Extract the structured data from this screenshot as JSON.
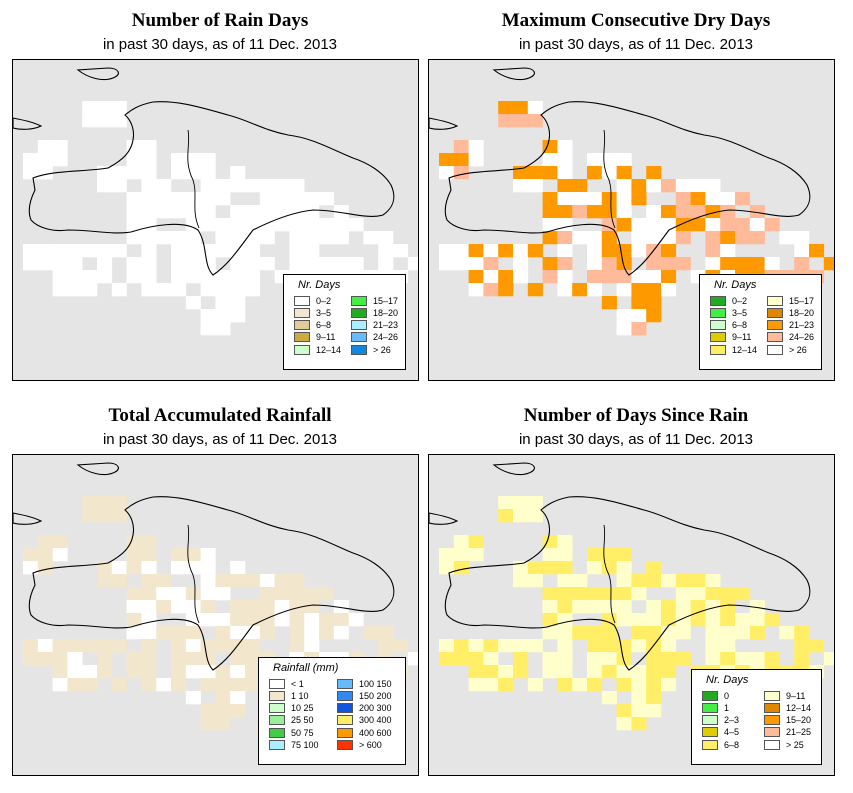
{
  "panels": [
    {
      "title": "Number of Rain Days",
      "subtitle": "in past 30 days, as of  11 Dec. 2013",
      "legend_title": "Nr. Days",
      "legend": [
        {
          "label": "0–2",
          "color": "#ffffff"
        },
        {
          "label": "3–5",
          "color": "#f2e6cc"
        },
        {
          "label": "6–8",
          "color": "#e0cc99"
        },
        {
          "label": "9–11",
          "color": "#ccaa44"
        },
        {
          "label": "12–14",
          "color": "#ccffcc"
        },
        {
          "label": "15–17",
          "color": "#44ee44"
        },
        {
          "label": "18–20",
          "color": "#22aa22"
        },
        {
          "label": "21–23",
          "color": "#aaeeff"
        },
        {
          "label": "24–26",
          "color": "#66bbff"
        },
        {
          "label": "> 26",
          "color": "#1188dd"
        }
      ]
    },
    {
      "title": "Maximum Consecutive Dry Days",
      "subtitle": "in past 30 days, as of  11 Dec. 2013",
      "legend_title": "Nr. Days",
      "legend": [
        {
          "label": "0–2",
          "color": "#22aa22"
        },
        {
          "label": "3–5",
          "color": "#44ee44"
        },
        {
          "label": "6–8",
          "color": "#ccffcc"
        },
        {
          "label": "9–11",
          "color": "#ddcc00"
        },
        {
          "label": "12–14",
          "color": "#ffee66"
        },
        {
          "label": "15–17",
          "color": "#ffffcc"
        },
        {
          "label": "18–20",
          "color": "#dd8800"
        },
        {
          "label": "21–23",
          "color": "#ff9900"
        },
        {
          "label": "24–26",
          "color": "#ffbb99"
        },
        {
          "label": "> 26",
          "color": "#ffffff"
        }
      ]
    },
    {
      "title": "Total Accumulated Rainfall",
      "subtitle": "in past 30 days, as of  11 Dec. 2013",
      "legend_title": "Rainfall (mm)",
      "legend": [
        {
          "label": "< 1",
          "color": "#ffffff"
        },
        {
          "label": "1   10",
          "color": "#f2e6cc"
        },
        {
          "label": "10   25",
          "color": "#ccffcc"
        },
        {
          "label": "25   50",
          "color": "#99ee99"
        },
        {
          "label": "50   75",
          "color": "#44cc44"
        },
        {
          "label": "75  100",
          "color": "#aaeeff"
        },
        {
          "label": "100  150",
          "color": "#66bbff"
        },
        {
          "label": "150  200",
          "color": "#3388ee"
        },
        {
          "label": "200  300",
          "color": "#1155dd"
        },
        {
          "label": "300  400",
          "color": "#ffee66"
        },
        {
          "label": "400  600",
          "color": "#ff9900"
        },
        {
          "label": "> 600",
          "color": "#ff3300"
        }
      ]
    },
    {
      "title": "Number of Days Since Rain",
      "subtitle": "in past 30 days, as of  11 Dec. 2013",
      "legend_title": "Nr. Days",
      "legend": [
        {
          "label": "0",
          "color": "#22aa22"
        },
        {
          "label": "1",
          "color": "#44ee44"
        },
        {
          "label": "2–3",
          "color": "#ccffcc"
        },
        {
          "label": "4–5",
          "color": "#ddcc00"
        },
        {
          "label": "6–8",
          "color": "#ffee66"
        },
        {
          "label": "9–11",
          "color": "#ffffcc"
        },
        {
          "label": "12–14",
          "color": "#dd8800"
        },
        {
          "label": "15–20",
          "color": "#ff9900"
        },
        {
          "label": "21–25",
          "color": "#ffbb99"
        },
        {
          "label": "> 25",
          "color": "#ffffff"
        }
      ]
    }
  ]
}
